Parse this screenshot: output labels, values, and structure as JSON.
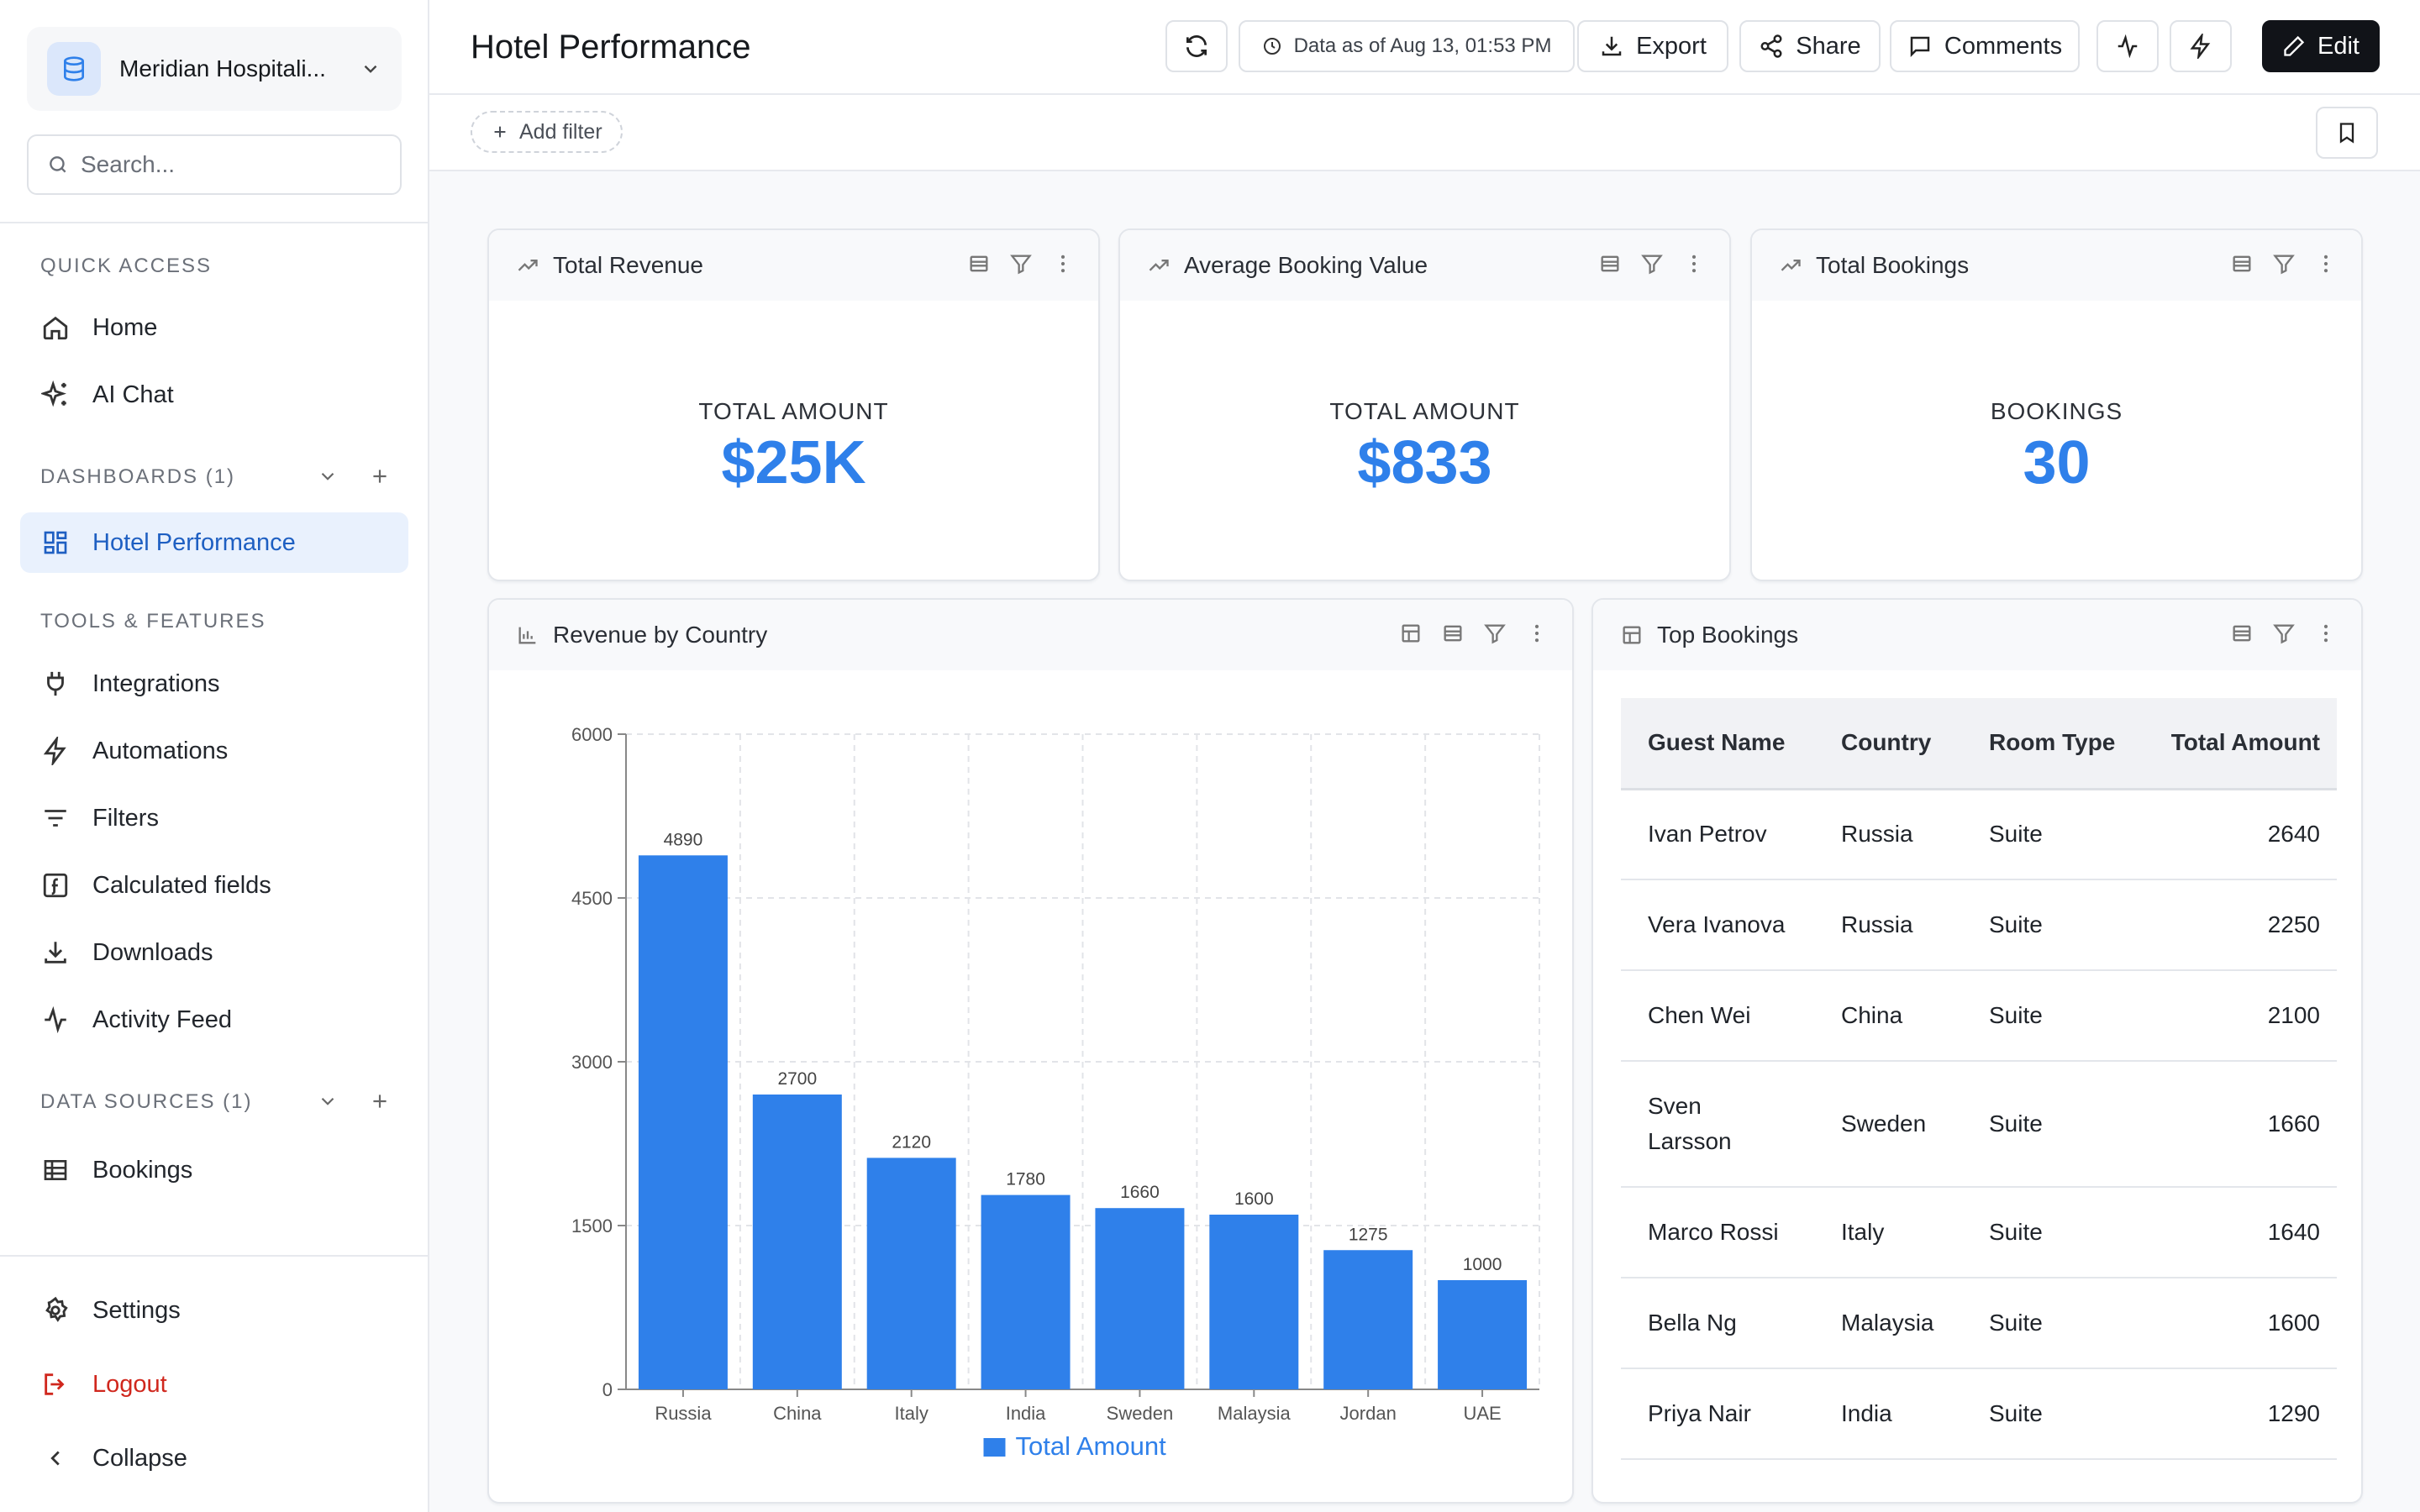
{
  "sidebar": {
    "workspace": "Meridian Hospitali...",
    "search_placeholder": "Search...",
    "quick_access_label": "QUICK ACCESS",
    "quick_access": [
      {
        "label": "Home",
        "icon": "home-icon"
      },
      {
        "label": "AI Chat",
        "icon": "sparkles-icon"
      }
    ],
    "dashboards_label": "DASHBOARDS (1)",
    "dashboards": [
      {
        "label": "Hotel Performance",
        "icon": "dashboard-grid-icon"
      }
    ],
    "tools_label": "TOOLS & FEATURES",
    "tools": [
      {
        "label": "Integrations",
        "icon": "plug-icon"
      },
      {
        "label": "Automations",
        "icon": "lightning-icon"
      },
      {
        "label": "Filters",
        "icon": "filter-lines-icon"
      },
      {
        "label": "Calculated fields",
        "icon": "function-icon"
      },
      {
        "label": "Downloads",
        "icon": "download-icon"
      },
      {
        "label": "Activity Feed",
        "icon": "activity-icon"
      }
    ],
    "data_sources_label": "DATA SOURCES (1)",
    "data_sources": [
      {
        "label": "Bookings",
        "icon": "table-icon"
      }
    ],
    "settings": "Settings",
    "logout": "Logout",
    "collapse": "Collapse"
  },
  "header": {
    "title": "Hotel Performance",
    "data_as_of": "Data as of Aug 13, 01:53 PM",
    "export": "Export",
    "share": "Share",
    "comments": "Comments",
    "edit": "Edit"
  },
  "filterbar": {
    "add_filter": "Add filter"
  },
  "kpis": [
    {
      "title": "Total Revenue",
      "label": "TOTAL AMOUNT",
      "value": "$25K"
    },
    {
      "title": "Average Booking Value",
      "label": "TOTAL AMOUNT",
      "value": "$833"
    },
    {
      "title": "Total Bookings",
      "label": "BOOKINGS",
      "value": "30"
    }
  ],
  "revenue_chart": {
    "title": "Revenue by Country"
  },
  "chart_data": {
    "type": "bar",
    "title": "",
    "categories": [
      "Russia",
      "China",
      "Italy",
      "India",
      "Sweden",
      "Malaysia",
      "Jordan",
      "UAE"
    ],
    "series": [
      {
        "name": "Total Amount",
        "values": [
          4890,
          2700,
          2120,
          1780,
          1660,
          1600,
          1275,
          1000
        ]
      }
    ],
    "yticks": [
      0,
      1500,
      3000,
      4500,
      6000
    ],
    "ylim": [
      0,
      6000
    ],
    "xlabel": "",
    "ylabel": "",
    "grid": true,
    "legend": "bottom",
    "color": "#2f80ea"
  },
  "top_bookings": {
    "title": "Top Bookings",
    "columns": [
      "Guest Name",
      "Country",
      "Room Type",
      "Total Amount"
    ],
    "rows": [
      [
        "Ivan Petrov",
        "Russia",
        "Suite",
        "2640"
      ],
      [
        "Vera Ivanova",
        "Russia",
        "Suite",
        "2250"
      ],
      [
        "Chen Wei",
        "China",
        "Suite",
        "2100"
      ],
      [
        "Sven Larsson",
        "Sweden",
        "Suite",
        "1660"
      ],
      [
        "Marco Rossi",
        "Italy",
        "Suite",
        "1640"
      ],
      [
        "Bella Ng",
        "Malaysia",
        "Suite",
        "1600"
      ],
      [
        "Priya Nair",
        "India",
        "Suite",
        "1290"
      ]
    ]
  }
}
